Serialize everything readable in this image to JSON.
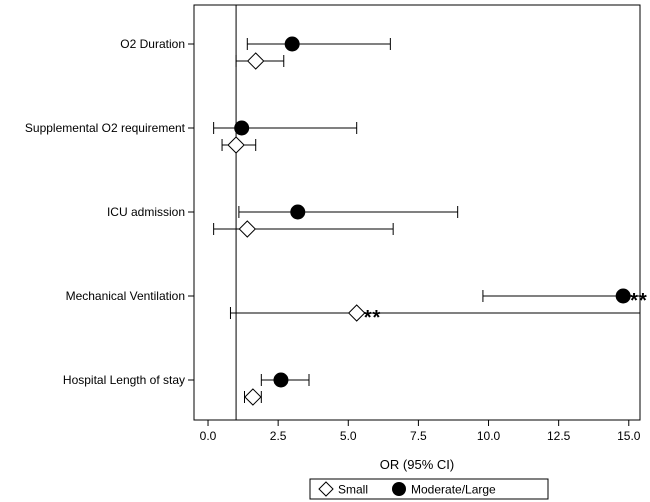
{
  "chart_data": {
    "type": "forest",
    "xlabel": "OR (95% CI)",
    "xlim": [
      -0.5,
      15.4
    ],
    "xticks": [
      0.0,
      2.5,
      5.0,
      7.5,
      10.0,
      12.5,
      15.0
    ],
    "xtick_labels": [
      "0.0",
      "2.5",
      "5.0",
      "7.5",
      "10.0",
      "12.5",
      "15.0"
    ],
    "reference_line": 1,
    "categories": [
      "O2 Duration",
      "Supplemental O2 requirement",
      "ICU admission",
      "Mechanical Ventilation",
      "Hospital Length of stay"
    ],
    "series": [
      {
        "name": "Moderate/Large",
        "marker": "filled-circle",
        "values": [
          {
            "or": 3.0,
            "lo": 1.4,
            "hi": 6.5
          },
          {
            "or": 1.2,
            "lo": 0.2,
            "hi": 5.3
          },
          {
            "or": 3.2,
            "lo": 1.1,
            "hi": 8.9
          },
          {
            "or": 14.8,
            "lo": 9.8,
            "hi": 15.4,
            "mark": "**"
          },
          {
            "or": 2.6,
            "lo": 1.9,
            "hi": 3.6
          }
        ]
      },
      {
        "name": "Small",
        "marker": "open-diamond",
        "values": [
          {
            "or": 1.7,
            "lo": 1.0,
            "hi": 2.7
          },
          {
            "or": 1.0,
            "lo": 0.5,
            "hi": 1.7
          },
          {
            "or": 1.4,
            "lo": 0.2,
            "hi": 6.6
          },
          {
            "or": 5.3,
            "lo": 0.8,
            "hi": 15.4,
            "mark": "**"
          },
          {
            "or": 1.6,
            "lo": 1.3,
            "hi": 1.9
          }
        ]
      }
    ],
    "legend": {
      "placement": "bottom",
      "entries": [
        {
          "label": "Small",
          "marker": "open-diamond"
        },
        {
          "label": "Moderate/Large",
          "marker": "filled-circle"
        }
      ]
    },
    "grid": false,
    "colors": {
      "ink": "#000000",
      "background": "#ffffff"
    }
  }
}
